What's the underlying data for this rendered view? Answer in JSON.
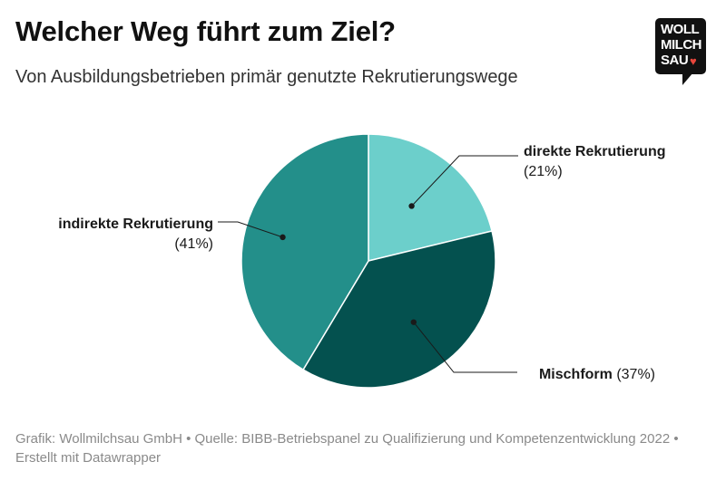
{
  "header": {
    "title": "Welcher Weg führt zum Ziel?",
    "subtitle": "Von Ausbildungsbetrieben primär genutzte Rekrutierungswege"
  },
  "logo": {
    "line1": "WOLL",
    "line2": "MILCH",
    "line3": "SAU",
    "heart_icon": "heart-icon"
  },
  "chart_data": {
    "type": "pie",
    "slices": [
      {
        "label": "direkte Rekrutierung",
        "value": 21,
        "value_text": "(21%)",
        "color": "#6ccfcb"
      },
      {
        "label": "Mischform",
        "value": 37,
        "value_text": "(37%)",
        "color": "#04514f"
      },
      {
        "label": "indirekte Rekrutierung",
        "value": 41,
        "value_text": "(41%)",
        "color": "#238f8a"
      }
    ]
  },
  "footer": {
    "text": "Grafik: Wollmilchsau GmbH • Quelle: BIBB-Betriebspanel zu Qualifizierung und Kompetenzentwicklung 2022 • Erstellt mit Datawrapper"
  }
}
